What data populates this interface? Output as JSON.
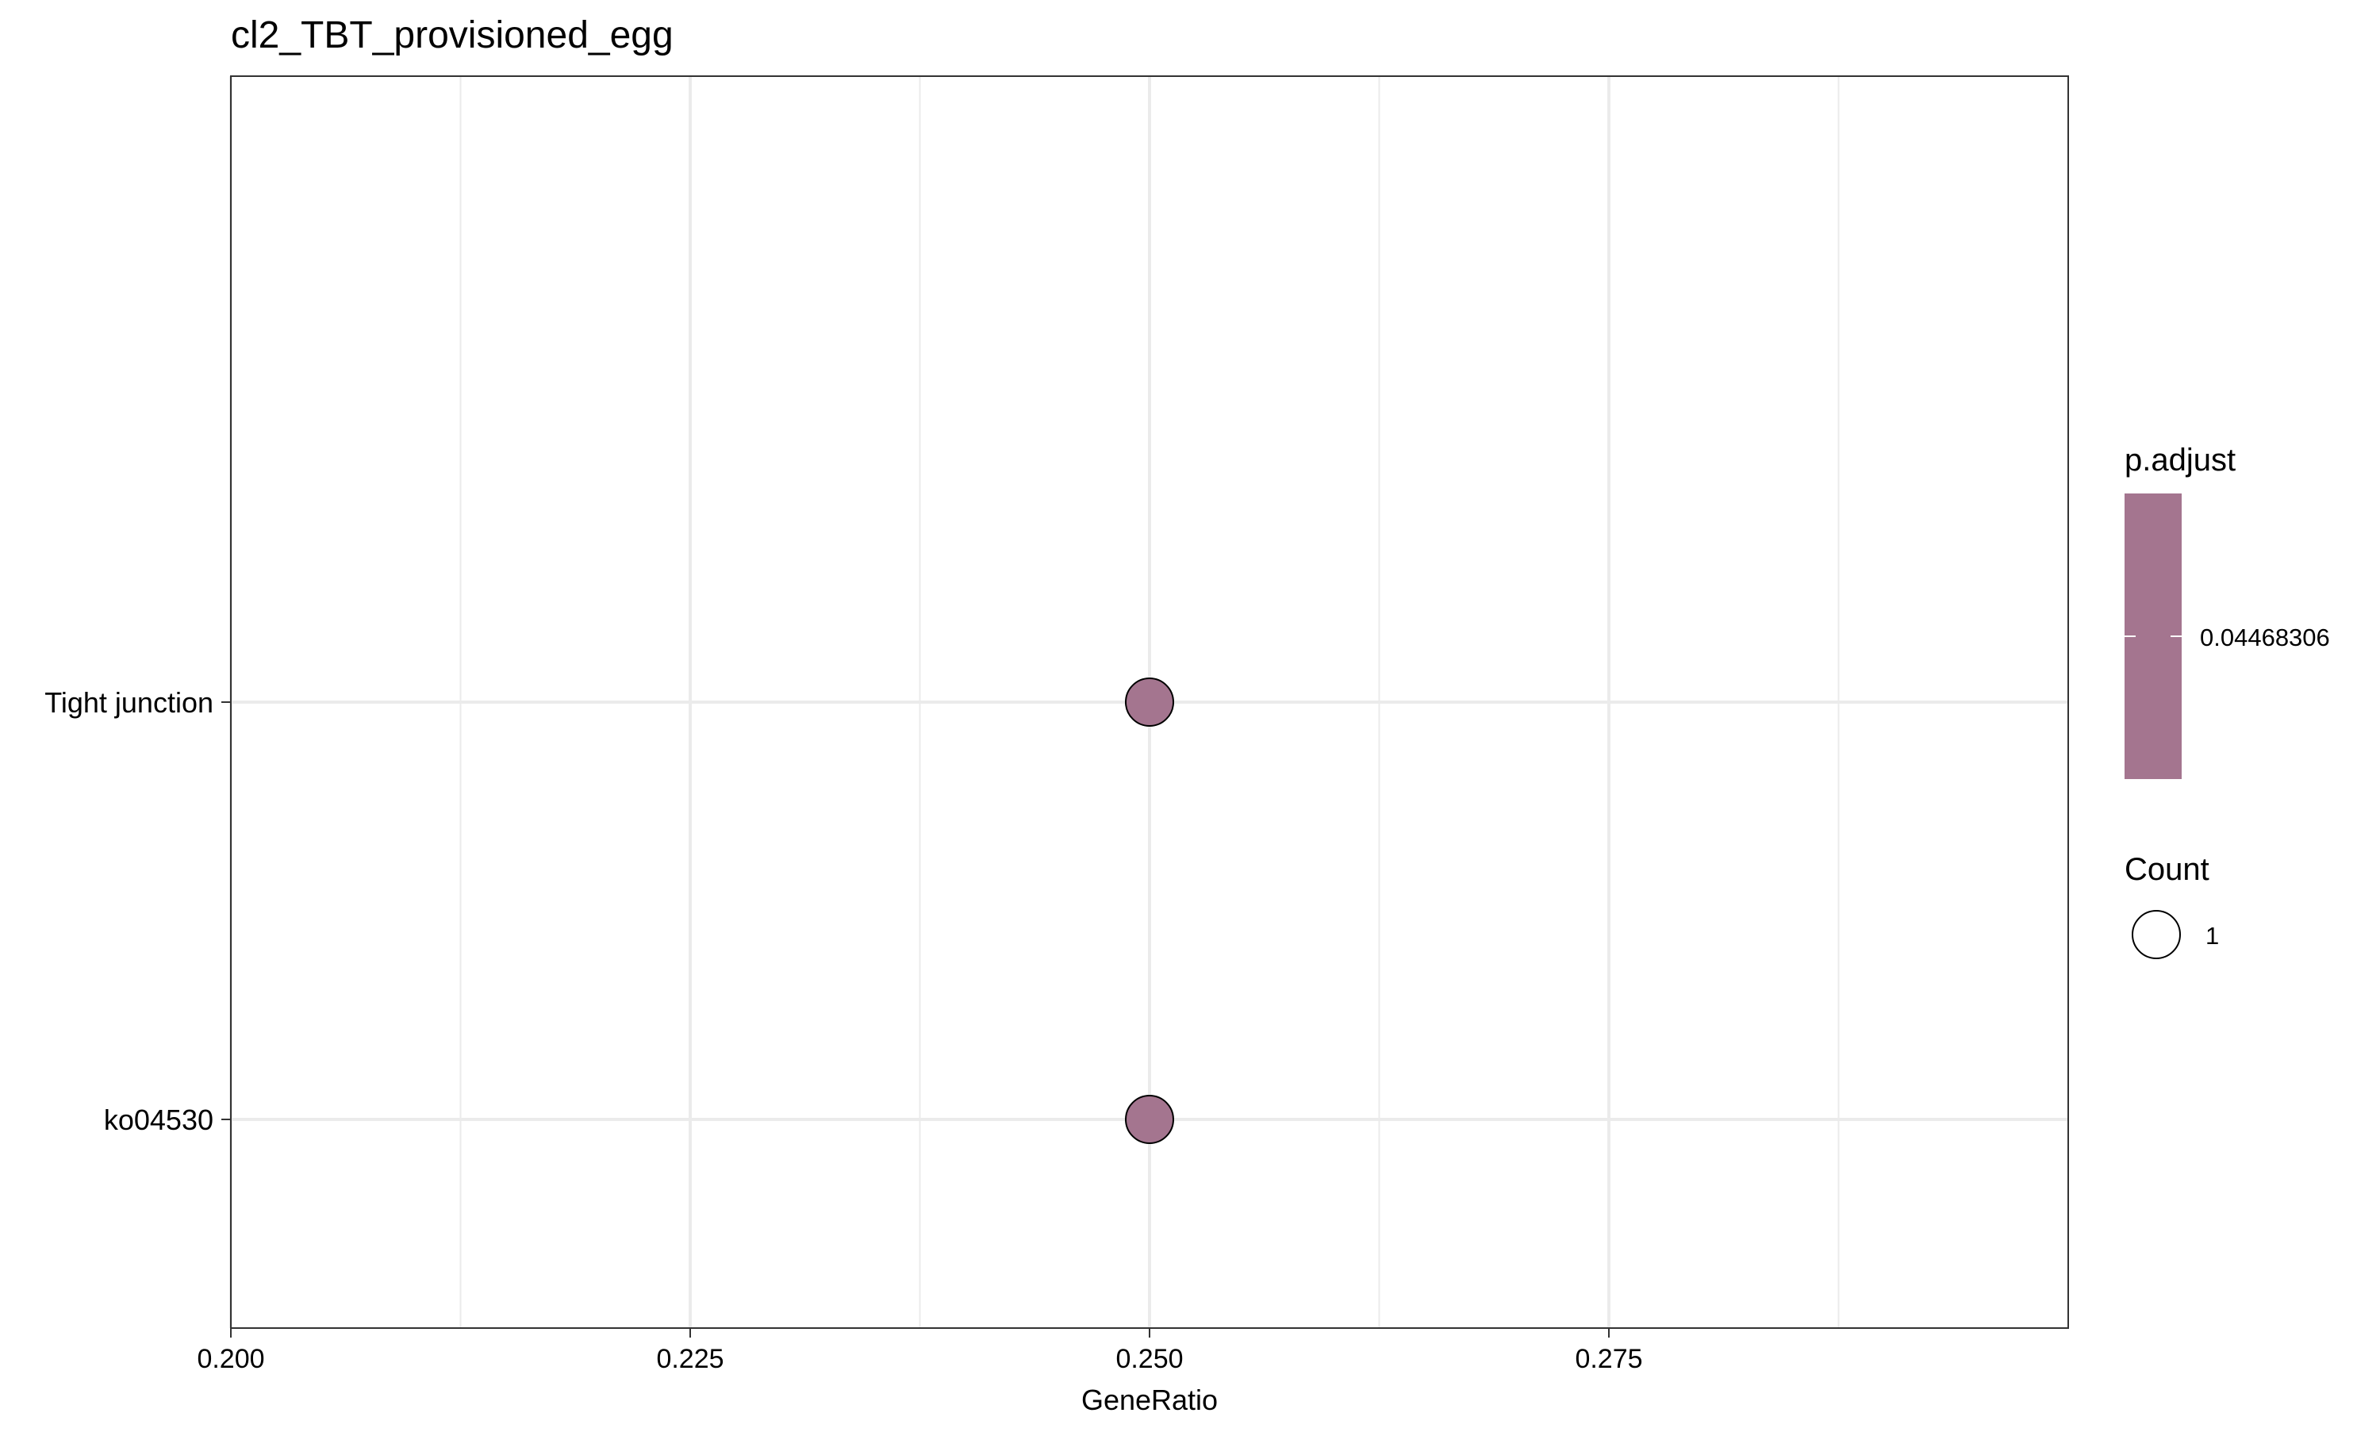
{
  "chart_data": {
    "type": "scatter",
    "title": "cl2_TBT_provisioned_egg",
    "xlabel": "GeneRatio",
    "ylabel": "",
    "xlim": [
      0.2,
      0.3
    ],
    "x_ticks": [
      0.2,
      0.225,
      0.25,
      0.275
    ],
    "x_tick_labels": [
      "0.200",
      "0.225",
      "0.250",
      "0.275"
    ],
    "categories": [
      "ko04530",
      "Tight junction"
    ],
    "points": [
      {
        "category": "ko04530",
        "x": 0.25,
        "p_adjust": 0.04468306,
        "count": 1
      },
      {
        "category": "Tight junction",
        "x": 0.25,
        "p_adjust": 0.04468306,
        "count": 1
      }
    ],
    "grid": true,
    "legend_position": "right",
    "legend": {
      "color": {
        "title": "p.adjust",
        "label": "0.04468306",
        "value": 0.04468306
      },
      "size": {
        "title": "Count",
        "label": "1",
        "value": 1
      }
    },
    "colors": {
      "point_fill": "#a4758f",
      "point_stroke": "#000000",
      "grid": "#ebebeb",
      "panel_border": "#333333",
      "background": "#ffffff"
    }
  }
}
